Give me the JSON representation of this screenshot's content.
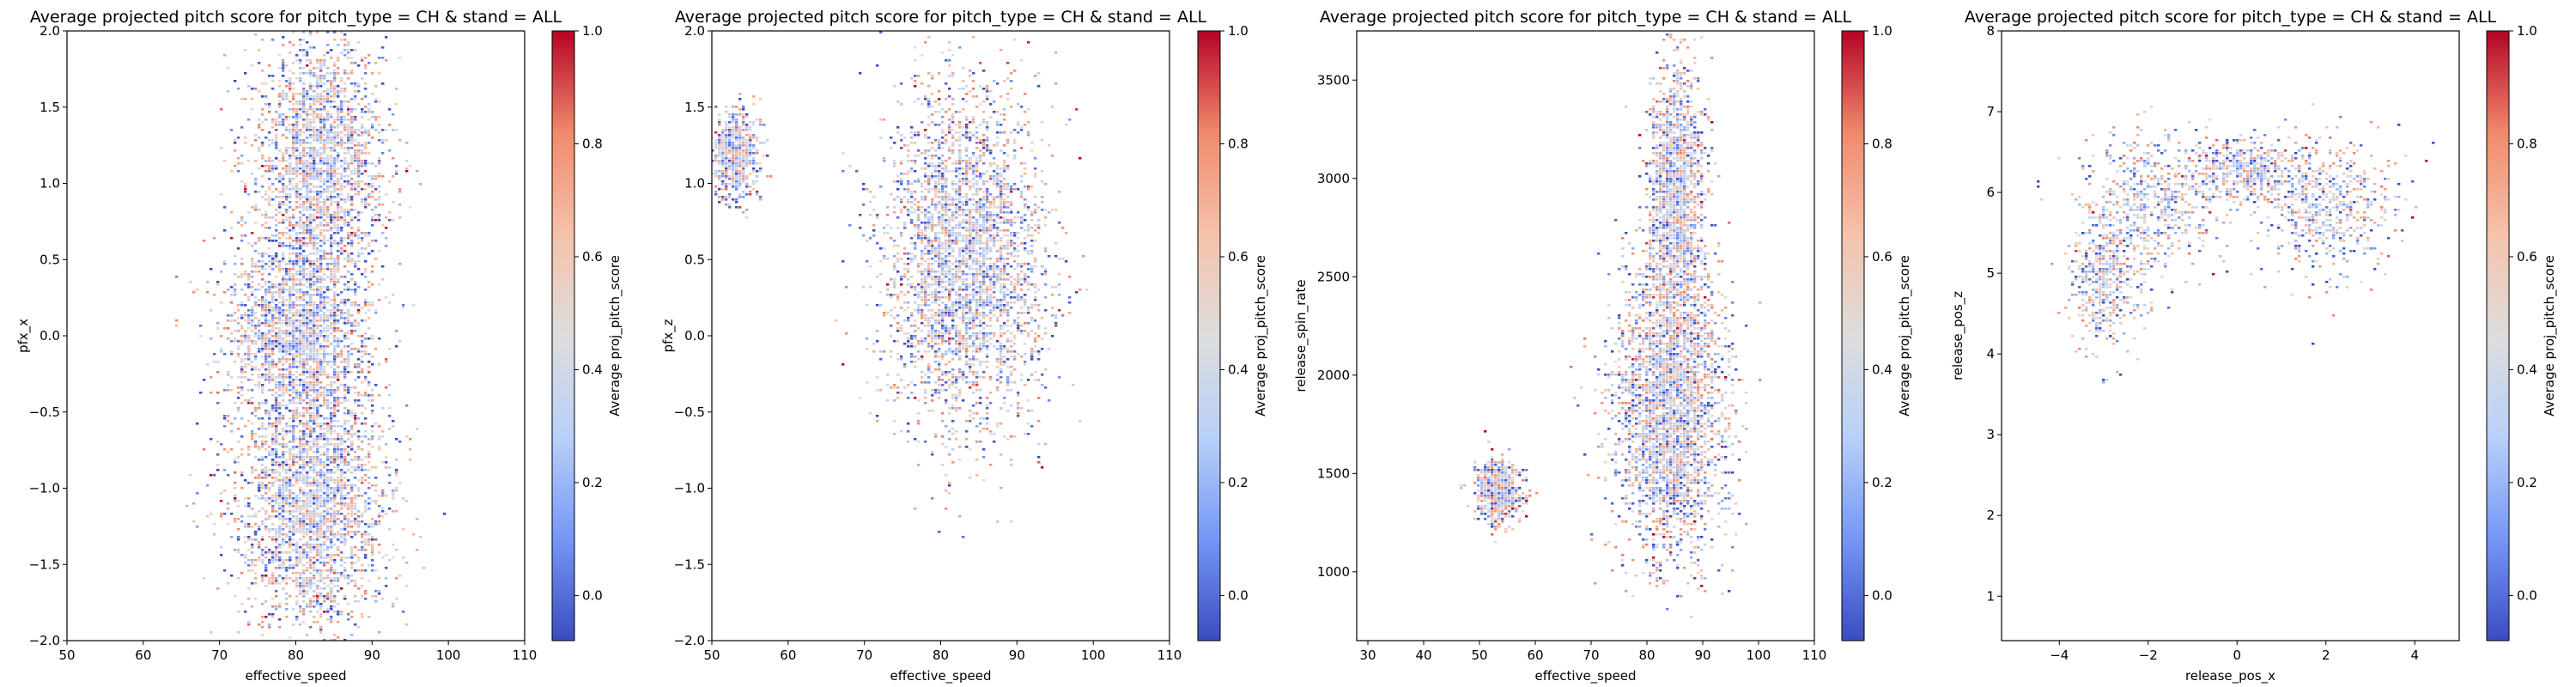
{
  "chart_data": [
    {
      "type": "heatmap",
      "title": "Average projected pitch score for pitch_type = CH & stand = ALL",
      "xlabel": "effective_speed",
      "ylabel": "pfx_x",
      "xlim": [
        50,
        110
      ],
      "ylim": [
        -2.0,
        2.0
      ],
      "xticks": [
        50,
        60,
        70,
        80,
        90,
        100,
        110
      ],
      "yticks": [
        -2.0,
        -1.5,
        -1.0,
        -0.5,
        0.0,
        0.5,
        1.0,
        1.5,
        2.0
      ],
      "xtick_labels": [
        "50",
        "60",
        "70",
        "80",
        "90",
        "100",
        "110"
      ],
      "ytick_labels": [
        "−2.0",
        "−1.5",
        "−1.0",
        "−0.5",
        "0.0",
        "0.5",
        "1.0",
        "1.5",
        "2.0"
      ],
      "clusters": [
        {
          "cx": 83,
          "cy": 1.15,
          "sx": 4.2,
          "sy": 0.42
        },
        {
          "cx": 82,
          "cy": -1.05,
          "sx": 5.0,
          "sy": 0.45
        },
        {
          "cx": 80,
          "cy": 0.05,
          "sx": 4.5,
          "sy": 0.35
        }
      ],
      "colorbar": {
        "label": "Average proj_pitch_score",
        "min": -0.08,
        "max": 1.0,
        "ticks": [
          0.0,
          0.2,
          0.4,
          0.6,
          0.8,
          1.0
        ],
        "tick_labels": [
          "0.0",
          "0.2",
          "0.4",
          "0.6",
          "0.8",
          "1.0"
        ]
      }
    },
    {
      "type": "heatmap",
      "title": "Average projected pitch score for pitch_type = CH & stand = ALL",
      "xlabel": "effective_speed",
      "ylabel": "pfx_z",
      "xlim": [
        50,
        110
      ],
      "ylim": [
        -2.0,
        2.0
      ],
      "xticks": [
        50,
        60,
        70,
        80,
        90,
        100,
        110
      ],
      "yticks": [
        -2.0,
        -1.5,
        -1.0,
        -0.5,
        0.0,
        0.5,
        1.0,
        1.5,
        2.0
      ],
      "xtick_labels": [
        "50",
        "60",
        "70",
        "80",
        "90",
        "100",
        "110"
      ],
      "ytick_labels": [
        "−2.0",
        "−1.5",
        "−1.0",
        "−0.5",
        "0.0",
        "0.5",
        "1.0",
        "1.5",
        "2.0"
      ],
      "clusters": [
        {
          "cx": 83,
          "cy": 0.5,
          "sx": 5.2,
          "sy": 0.55
        },
        {
          "cx": 53,
          "cy": 1.2,
          "sx": 1.5,
          "sy": 0.15
        }
      ],
      "colorbar": {
        "label": "Average proj_pitch_score",
        "min": -0.08,
        "max": 1.0,
        "ticks": [
          0.0,
          0.2,
          0.4,
          0.6,
          0.8,
          1.0
        ],
        "tick_labels": [
          "0.0",
          "0.2",
          "0.4",
          "0.6",
          "0.8",
          "1.0"
        ]
      }
    },
    {
      "type": "heatmap",
      "title": "Average projected pitch score for pitch_type = CH & stand = ALL",
      "xlabel": "effective_speed",
      "ylabel": "release_spin_rate",
      "xlim": [
        28,
        110
      ],
      "ylim": [
        650,
        3750
      ],
      "xticks": [
        30,
        40,
        50,
        60,
        70,
        80,
        90,
        100,
        110
      ],
      "yticks": [
        1000,
        1500,
        2000,
        2500,
        3000,
        3500
      ],
      "xtick_labels": [
        "30",
        "40",
        "50",
        "60",
        "70",
        "80",
        "90",
        "100",
        "110"
      ],
      "ytick_labels": [
        "1000",
        "1500",
        "2000",
        "2500",
        "3000",
        "3500"
      ],
      "clusters": [
        {
          "cx": 84,
          "cy": 1850,
          "sx": 5.0,
          "sy": 380
        },
        {
          "cx": 85,
          "cy": 2900,
          "sx": 2.5,
          "sy": 350
        },
        {
          "cx": 53,
          "cy": 1420,
          "sx": 2.0,
          "sy": 80
        }
      ],
      "colorbar": {
        "label": "Average proj_pitch_score",
        "min": -0.08,
        "max": 1.0,
        "ticks": [
          0.0,
          0.2,
          0.4,
          0.6,
          0.8,
          1.0
        ],
        "tick_labels": [
          "0.0",
          "0.2",
          "0.4",
          "0.6",
          "0.8",
          "1.0"
        ]
      }
    },
    {
      "type": "heatmap",
      "title": "Average projected pitch score for pitch_type = CH & stand = ALL",
      "xlabel": "release_pos_x",
      "ylabel": "release_pos_z",
      "xlim": [
        -5.3,
        5.0
      ],
      "ylim": [
        0.45,
        8.0
      ],
      "xticks": [
        -4,
        -2,
        0,
        2,
        4
      ],
      "yticks": [
        1,
        2,
        3,
        4,
        5,
        6,
        7,
        8
      ],
      "xtick_labels": [
        "−4",
        "−2",
        "0",
        "2",
        "4"
      ],
      "ytick_labels": [
        "1",
        "2",
        "3",
        "4",
        "5",
        "6",
        "7",
        "8"
      ],
      "clusters": [
        {
          "cx": -2.0,
          "cy": 5.85,
          "sx": 0.75,
          "sy": 0.45
        },
        {
          "cx": 2.0,
          "cy": 5.85,
          "sx": 0.75,
          "sy": 0.45
        },
        {
          "cx": -3.0,
          "cy": 4.9,
          "sx": 0.4,
          "sy": 0.4
        },
        {
          "cx": 0.0,
          "cy": 6.3,
          "sx": 0.55,
          "sy": 0.2
        }
      ],
      "colorbar": {
        "label": "Average proj_pitch_score",
        "min": -0.08,
        "max": 1.0,
        "ticks": [
          0.0,
          0.2,
          0.4,
          0.6,
          0.8,
          1.0
        ],
        "tick_labels": [
          "0.0",
          "0.2",
          "0.4",
          "0.6",
          "0.8",
          "1.0"
        ]
      }
    }
  ],
  "colormap": {
    "name": "coolwarm",
    "stops": [
      "#3b4cc0",
      "#7597f6",
      "#b9d0f9",
      "#dddddd",
      "#f5c2aa",
      "#f08a6c",
      "#b40426"
    ]
  }
}
